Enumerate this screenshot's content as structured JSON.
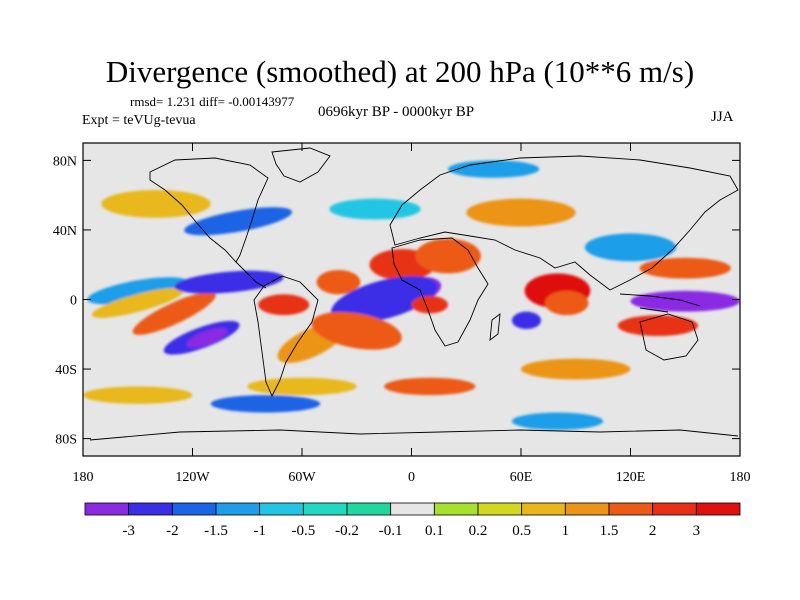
{
  "title": "Divergence (smoothed) at 200 hPa (10**6 m/s)",
  "stats": "rmsd= 1.231 diff= -0.00143977",
  "experiment": "Expt = teVUg-tevua",
  "period": "0696kyr BP - 0000kyr BP",
  "season": "JJA",
  "colors": {
    "neutral": "#e6e6e6",
    "palette": [
      "#8a2be2",
      "#3a2ee6",
      "#1a64e6",
      "#1e9ee8",
      "#22c6e4",
      "#22d8c0",
      "#1fd8a0",
      "#e6e6e6",
      "#a8e030",
      "#d2d820",
      "#e8b81a",
      "#ec9418",
      "#ec5a18",
      "#e83016",
      "#e01010"
    ]
  },
  "map": {
    "lat_labels": [
      "80N",
      "40N",
      "0",
      "40S",
      "80S"
    ],
    "lon_labels": [
      "180",
      "120W",
      "60W",
      "0",
      "60E",
      "120E",
      "180"
    ]
  },
  "colorbar": {
    "labels": [
      "-3",
      "-2",
      "-1.5",
      "-1",
      "-0.5",
      "-0.2",
      "-0.1",
      "0.1",
      "0.2",
      "0.5",
      "1",
      "1.5",
      "2",
      "3"
    ]
  },
  "blobs": [
    {
      "c": 3,
      "cx": -150,
      "cy": 5,
      "rx": 28,
      "ry": 6,
      "r": -10
    },
    {
      "c": 10,
      "cx": -150,
      "cy": -2,
      "rx": 26,
      "ry": 5,
      "r": -15
    },
    {
      "c": 1,
      "cx": -115,
      "cy": -22,
      "rx": 22,
      "ry": 6,
      "r": -20
    },
    {
      "c": 0,
      "cx": -112,
      "cy": -22,
      "rx": 12,
      "ry": 4,
      "r": -20
    },
    {
      "c": 12,
      "cx": -130,
      "cy": -8,
      "rx": 25,
      "ry": 6,
      "r": -25
    },
    {
      "c": 13,
      "cx": -70,
      "cy": -3,
      "rx": 14,
      "ry": 6,
      "r": 0
    },
    {
      "c": 11,
      "cx": -55,
      "cy": -25,
      "rx": 20,
      "ry": 8,
      "r": -25
    },
    {
      "c": 1,
      "cx": -100,
      "cy": 10,
      "rx": 30,
      "ry": 6,
      "r": -5
    },
    {
      "c": 12,
      "cx": -40,
      "cy": 10,
      "rx": 12,
      "ry": 7,
      "r": 0
    },
    {
      "c": 13,
      "cx": -5,
      "cy": 20,
      "rx": 18,
      "ry": 9,
      "r": 0
    },
    {
      "c": 0,
      "cx": -8,
      "cy": 2,
      "rx": 25,
      "ry": 9,
      "r": -15
    },
    {
      "c": 1,
      "cx": -15,
      "cy": 0,
      "rx": 30,
      "ry": 11,
      "r": -15
    },
    {
      "c": 12,
      "cx": -30,
      "cy": -18,
      "rx": 25,
      "ry": 10,
      "r": 10
    },
    {
      "c": 13,
      "cx": 10,
      "cy": -3,
      "rx": 10,
      "ry": 5,
      "r": 0
    },
    {
      "c": 12,
      "cx": 20,
      "cy": 25,
      "rx": 18,
      "ry": 10,
      "r": 0
    },
    {
      "c": 14,
      "cx": 80,
      "cy": 5,
      "rx": 18,
      "ry": 10,
      "r": 0
    },
    {
      "c": 12,
      "cx": 85,
      "cy": -2,
      "rx": 12,
      "ry": 7,
      "r": 0
    },
    {
      "c": 1,
      "cx": 63,
      "cy": -12,
      "rx": 8,
      "ry": 5,
      "r": 0
    },
    {
      "c": 3,
      "cx": 120,
      "cy": 30,
      "rx": 25,
      "ry": 8,
      "r": 0
    },
    {
      "c": 12,
      "cx": 150,
      "cy": 18,
      "rx": 25,
      "ry": 6,
      "r": 0
    },
    {
      "c": 0,
      "cx": 150,
      "cy": -1,
      "rx": 30,
      "ry": 6,
      "r": 0
    },
    {
      "c": 13,
      "cx": 135,
      "cy": -15,
      "rx": 22,
      "ry": 6,
      "r": 0
    },
    {
      "c": 2,
      "cx": -95,
      "cy": 45,
      "rx": 30,
      "ry": 6,
      "r": -10
    },
    {
      "c": 10,
      "cx": -140,
      "cy": 55,
      "rx": 30,
      "ry": 8,
      "r": 0
    },
    {
      "c": 4,
      "cx": -20,
      "cy": 52,
      "rx": 25,
      "ry": 6,
      "r": 0
    },
    {
      "c": 11,
      "cx": 60,
      "cy": 50,
      "rx": 30,
      "ry": 8,
      "r": 0
    },
    {
      "c": 3,
      "cx": 45,
      "cy": 75,
      "rx": 25,
      "ry": 5,
      "r": 0
    },
    {
      "c": 10,
      "cx": -60,
      "cy": -50,
      "rx": 30,
      "ry": 5,
      "r": 0
    },
    {
      "c": 11,
      "cx": 90,
      "cy": -40,
      "rx": 30,
      "ry": 6,
      "r": 0
    },
    {
      "c": 12,
      "cx": 10,
      "cy": -50,
      "rx": 25,
      "ry": 5,
      "r": 0
    },
    {
      "c": 2,
      "cx": -80,
      "cy": -60,
      "rx": 30,
      "ry": 5,
      "r": 0
    },
    {
      "c": 10,
      "cx": -150,
      "cy": -55,
      "rx": 30,
      "ry": 5,
      "r": 0
    },
    {
      "c": 3,
      "cx": 80,
      "cy": -70,
      "rx": 25,
      "ry": 5,
      "r": 0
    }
  ]
}
